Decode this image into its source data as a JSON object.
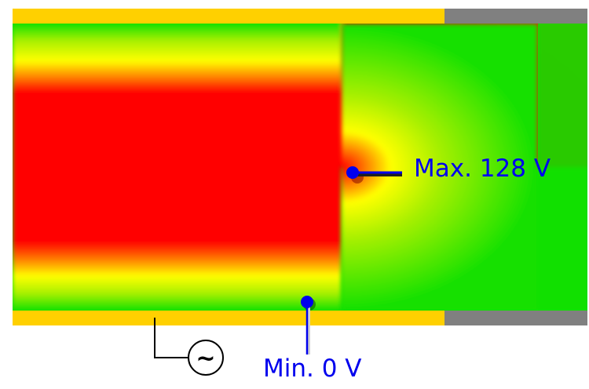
{
  "annotations": {
    "max_label": "Max. 128 V",
    "min_label": "Min. 0 V"
  },
  "source_symbol": "~",
  "colors": {
    "background": "#ffffff",
    "electrode": "#ffd000",
    "insulator": "#808080",
    "field_high": "#ff0000",
    "field_mid": "#ffff00",
    "field_low": "#00dd00",
    "annotation": "#0000ee",
    "wire": "#000000"
  },
  "field_scale": {
    "min_value": 0,
    "max_value": 128,
    "unit": "V"
  }
}
